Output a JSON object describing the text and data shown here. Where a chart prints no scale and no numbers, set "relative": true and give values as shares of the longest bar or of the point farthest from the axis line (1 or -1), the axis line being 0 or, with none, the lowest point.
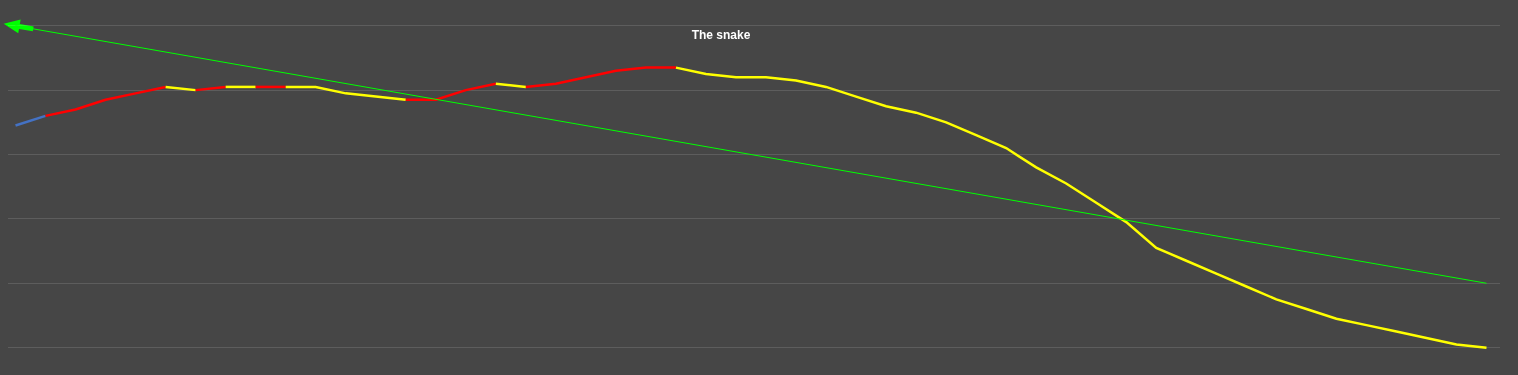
{
  "chart_data": {
    "type": "line",
    "title": "The snake",
    "relative": true,
    "grid": "y",
    "marker": "none",
    "line_style": "solid",
    "categories": [
      null,
      null,
      null,
      null,
      null,
      null,
      null,
      null,
      null,
      null,
      null,
      null,
      null,
      null,
      null,
      null,
      null,
      null,
      null,
      null,
      null,
      null,
      null,
      null,
      null,
      null,
      null,
      null,
      null,
      null,
      null,
      null,
      null,
      null,
      null,
      null,
      null,
      null,
      null,
      null,
      null,
      null,
      null,
      null,
      null,
      null,
      null,
      null,
      null,
      null
    ],
    "series": [
      {
        "color": "#4472c4",
        "values": [
          0.69,
          0.72,
          null,
          null,
          null,
          null,
          null,
          null,
          null,
          null,
          null,
          null,
          null,
          null,
          null,
          null,
          null,
          null,
          null,
          null,
          null,
          null,
          null,
          null,
          null,
          null,
          null,
          null,
          null,
          null,
          null,
          null,
          null,
          null,
          null,
          null,
          null,
          null,
          null,
          null,
          null,
          null,
          null,
          null,
          null,
          null,
          null,
          null,
          null,
          null
        ]
      },
      {
        "color": "#ff0000",
        "values": [
          null,
          0.72,
          0.74,
          0.77,
          0.79,
          0.81,
          null,
          null,
          null,
          null,
          null,
          null,
          null,
          null,
          null,
          null,
          null,
          null,
          null,
          null,
          null,
          null,
          null,
          null,
          null,
          null,
          null,
          null,
          null,
          null,
          null,
          null,
          null,
          null,
          null,
          null,
          null,
          null,
          null,
          null,
          null,
          null,
          null,
          null,
          null,
          null,
          null,
          null,
          null,
          null
        ]
      },
      {
        "color": "#ffff00",
        "values": [
          null,
          null,
          null,
          null,
          null,
          0.81,
          0.8,
          null,
          null,
          null,
          null,
          null,
          null,
          null,
          null,
          null,
          null,
          null,
          null,
          null,
          null,
          null,
          null,
          null,
          null,
          null,
          null,
          null,
          null,
          null,
          null,
          null,
          null,
          null,
          null,
          null,
          null,
          null,
          null,
          null,
          null,
          null,
          null,
          null,
          null,
          null,
          null,
          null,
          null,
          null
        ]
      },
      {
        "color": "#ff0000",
        "values": [
          null,
          null,
          null,
          null,
          null,
          null,
          0.8,
          0.81,
          null,
          null,
          null,
          null,
          null,
          null,
          null,
          null,
          null,
          null,
          null,
          null,
          null,
          null,
          null,
          null,
          null,
          null,
          null,
          null,
          null,
          null,
          null,
          null,
          null,
          null,
          null,
          null,
          null,
          null,
          null,
          null,
          null,
          null,
          null,
          null,
          null,
          null,
          null,
          null,
          null,
          null
        ]
      },
      {
        "color": "#ffff00",
        "values": [
          null,
          null,
          null,
          null,
          null,
          null,
          null,
          0.81,
          0.81,
          null,
          null,
          null,
          null,
          null,
          null,
          null,
          null,
          null,
          null,
          null,
          null,
          null,
          null,
          null,
          null,
          null,
          null,
          null,
          null,
          null,
          null,
          null,
          null,
          null,
          null,
          null,
          null,
          null,
          null,
          null,
          null,
          null,
          null,
          null,
          null,
          null,
          null,
          null,
          null,
          null
        ]
      },
      {
        "color": "#ff0000",
        "values": [
          null,
          null,
          null,
          null,
          null,
          null,
          null,
          null,
          0.81,
          0.81,
          null,
          null,
          null,
          null,
          null,
          null,
          null,
          null,
          null,
          null,
          null,
          null,
          null,
          null,
          null,
          null,
          null,
          null,
          null,
          null,
          null,
          null,
          null,
          null,
          null,
          null,
          null,
          null,
          null,
          null,
          null,
          null,
          null,
          null,
          null,
          null,
          null,
          null,
          null,
          null
        ]
      },
      {
        "color": "#ffff00",
        "values": [
          null,
          null,
          null,
          null,
          null,
          null,
          null,
          null,
          null,
          0.81,
          0.81,
          0.79,
          0.78,
          0.77,
          null,
          null,
          null,
          null,
          null,
          null,
          null,
          null,
          null,
          null,
          null,
          null,
          null,
          null,
          null,
          null,
          null,
          null,
          null,
          null,
          null,
          null,
          null,
          null,
          null,
          null,
          null,
          null,
          null,
          null,
          null,
          null,
          null,
          null,
          null,
          null
        ]
      },
      {
        "color": "#ff0000",
        "values": [
          null,
          null,
          null,
          null,
          null,
          null,
          null,
          null,
          null,
          null,
          null,
          null,
          null,
          0.77,
          0.77,
          0.8,
          0.82,
          null,
          null,
          null,
          null,
          null,
          null,
          null,
          null,
          null,
          null,
          null,
          null,
          null,
          null,
          null,
          null,
          null,
          null,
          null,
          null,
          null,
          null,
          null,
          null,
          null,
          null,
          null,
          null,
          null,
          null,
          null,
          null,
          null
        ]
      },
      {
        "color": "#ffff00",
        "values": [
          null,
          null,
          null,
          null,
          null,
          null,
          null,
          null,
          null,
          null,
          null,
          null,
          null,
          null,
          null,
          null,
          0.82,
          0.81,
          null,
          null,
          null,
          null,
          null,
          null,
          null,
          null,
          null,
          null,
          null,
          null,
          null,
          null,
          null,
          null,
          null,
          null,
          null,
          null,
          null,
          null,
          null,
          null,
          null,
          null,
          null,
          null,
          null,
          null,
          null,
          null
        ]
      },
      {
        "color": "#ff0000",
        "values": [
          null,
          null,
          null,
          null,
          null,
          null,
          null,
          null,
          null,
          null,
          null,
          null,
          null,
          null,
          null,
          null,
          null,
          0.81,
          0.82,
          0.84,
          0.86,
          0.87,
          0.87,
          null,
          null,
          null,
          null,
          null,
          null,
          null,
          null,
          null,
          null,
          null,
          null,
          null,
          null,
          null,
          null,
          null,
          null,
          null,
          null,
          null,
          null,
          null,
          null,
          null,
          null,
          null
        ]
      },
      {
        "color": "#ffff00",
        "values": [
          null,
          null,
          null,
          null,
          null,
          null,
          null,
          null,
          null,
          null,
          null,
          null,
          null,
          null,
          null,
          null,
          null,
          null,
          null,
          null,
          null,
          null,
          0.87,
          0.85,
          0.84,
          0.84,
          0.83,
          0.81,
          0.78,
          0.75,
          0.73,
          0.7,
          0.66,
          0.62,
          0.56,
          0.51,
          0.45,
          0.39,
          0.31,
          0.27,
          0.23,
          0.19,
          0.15,
          0.12,
          0.09,
          0.07,
          0.05,
          0.03,
          0.01,
          0
        ]
      },
      {
        "color": "#00ff00",
        "values": [
          1.0,
          null,
          null,
          null,
          null,
          null,
          null,
          null,
          null,
          null,
          null,
          null,
          null,
          null,
          null,
          null,
          null,
          null,
          null,
          null,
          null,
          null,
          null,
          null,
          null,
          null,
          null,
          null,
          null,
          null,
          null,
          null,
          null,
          null,
          null,
          null,
          null,
          null,
          null,
          null,
          null,
          null,
          null,
          null,
          null,
          null,
          null,
          null,
          null,
          0.2
        ]
      }
    ]
  }
}
